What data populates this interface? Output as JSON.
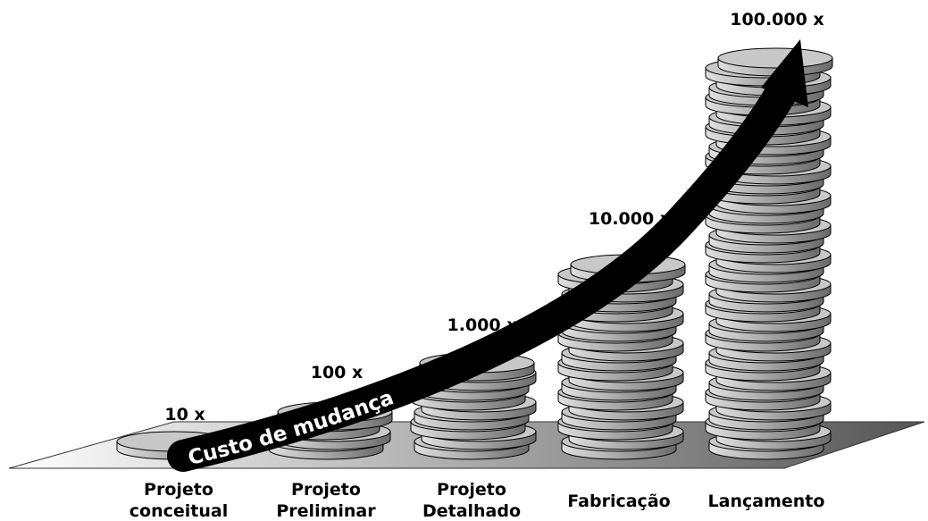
{
  "arrow_label": "Custo de mudança",
  "stages": [
    {
      "label": [
        "Projeto",
        "conceitual"
      ],
      "multiplier": "10 x"
    },
    {
      "label": [
        "Projeto",
        "Preliminar"
      ],
      "multiplier": "100 x"
    },
    {
      "label": [
        "Projeto",
        "Detalhado"
      ],
      "multiplier": "1.000 x"
    },
    {
      "label": [
        "Fabricação"
      ],
      "multiplier": "10.000 x"
    },
    {
      "label": [
        "Lançamento"
      ],
      "multiplier": "100.000 x"
    }
  ]
}
